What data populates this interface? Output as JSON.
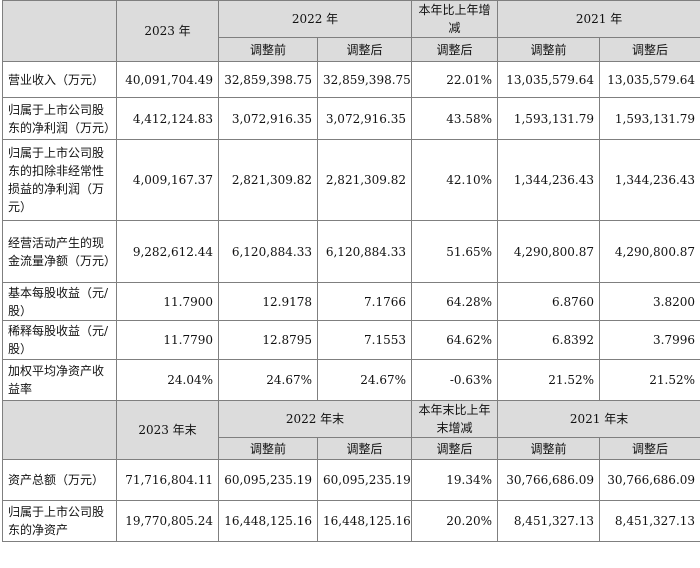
{
  "header_top": {
    "year_2023": "2023 年",
    "year_2022": "2022 年",
    "change": "本年比上年增减",
    "year_2021": "2021 年"
  },
  "subheader": {
    "before": "调整前",
    "after": "调整后"
  },
  "rows_top": [
    {
      "label": "营业收入（万元）",
      "v2023": "40,091,704.49",
      "v2022_before": "32,859,398.75",
      "v2022_after": "32,859,398.75",
      "change": "22.01%",
      "v2021_before": "13,035,579.64",
      "v2021_after": "13,035,579.64"
    },
    {
      "label": "归属于上市公司股东的净利润（万元）",
      "v2023": "4,412,124.83",
      "v2022_before": "3,072,916.35",
      "v2022_after": "3,072,916.35",
      "change": "43.58%",
      "v2021_before": "1,593,131.79",
      "v2021_after": "1,593,131.79"
    },
    {
      "label": "归属于上市公司股东的扣除非经常性损益的净利润（万元）",
      "v2023": "4,009,167.37",
      "v2022_before": "2,821,309.82",
      "v2022_after": "2,821,309.82",
      "change": "42.10%",
      "v2021_before": "1,344,236.43",
      "v2021_after": "1,344,236.43"
    },
    {
      "label": "经营活动产生的现金流量净额（万元）",
      "v2023": "9,282,612.44",
      "v2022_before": "6,120,884.33",
      "v2022_after": "6,120,884.33",
      "change": "51.65%",
      "v2021_before": "4,290,800.87",
      "v2021_after": "4,290,800.87"
    },
    {
      "label": "基本每股收益（元/股）",
      "v2023": "11.7900",
      "v2022_before": "12.9178",
      "v2022_after": "7.1766",
      "change": "64.28%",
      "v2021_before": "6.8760",
      "v2021_after": "3.8200"
    },
    {
      "label": "稀释每股收益（元/股）",
      "v2023": "11.7790",
      "v2022_before": "12.8795",
      "v2022_after": "7.1553",
      "change": "64.62%",
      "v2021_before": "6.8392",
      "v2021_after": "3.7996"
    },
    {
      "label": "加权平均净资产收益率",
      "v2023": "24.04%",
      "v2022_before": "24.67%",
      "v2022_after": "24.67%",
      "change": "-0.63%",
      "v2021_before": "21.52%",
      "v2021_after": "21.52%"
    }
  ],
  "header_bottom": {
    "year_2023": "2023 年末",
    "year_2022": "2022 年末",
    "change": "本年末比上年末增减",
    "year_2021": "2021 年末"
  },
  "rows_bottom": [
    {
      "label": "资产总额（万元）",
      "v2023": "71,716,804.11",
      "v2022_before": "60,095,235.19",
      "v2022_after": "60,095,235.19",
      "change": "19.34%",
      "v2021_before": "30,766,686.09",
      "v2021_after": "30,766,686.09"
    },
    {
      "label": "归属于上市公司股东的净资产",
      "v2023": "19,770,805.24",
      "v2022_before": "16,448,125.16",
      "v2022_after": "16,448,125.16",
      "change": "20.20%",
      "v2021_before": "8,451,327.13",
      "v2021_after": "8,451,327.13"
    }
  ]
}
